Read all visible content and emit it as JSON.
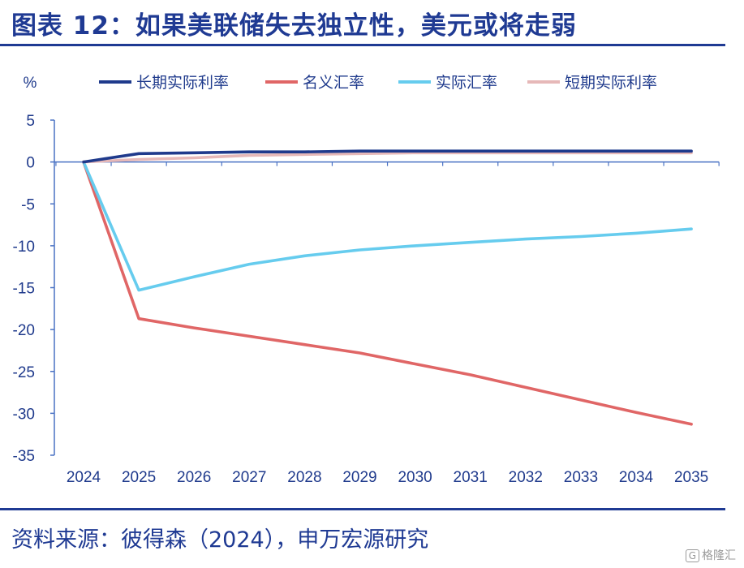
{
  "title": "图表 12：如果美联储失去独立性，美元或将走弱",
  "source": "资料来源：彼得森（2024），申万宏源研究",
  "watermark": "格隆汇",
  "chart_data": {
    "type": "line",
    "ylabel": "%",
    "ylim": [
      -35,
      5
    ],
    "yticks": [
      5,
      0,
      -5,
      -10,
      -15,
      -20,
      -25,
      -30,
      -35
    ],
    "categories": [
      "2024",
      "2025",
      "2026",
      "2027",
      "2028",
      "2029",
      "2030",
      "2031",
      "2032",
      "2033",
      "2034",
      "2035"
    ],
    "legend_position": "top",
    "grid": false,
    "series": [
      {
        "name": "长期实际利率",
        "color": "#1f3a8c",
        "values": [
          0,
          1.0,
          1.1,
          1.2,
          1.2,
          1.3,
          1.3,
          1.3,
          1.3,
          1.3,
          1.3,
          1.3
        ]
      },
      {
        "name": "名义汇率",
        "color": "#e06666",
        "values": [
          0,
          -18.7,
          -19.8,
          -20.8,
          -21.8,
          -22.8,
          -24.1,
          -25.4,
          -26.9,
          -28.4,
          -29.9,
          -31.3
        ]
      },
      {
        "name": "实际汇率",
        "color": "#66ccee",
        "values": [
          0,
          -15.3,
          -13.7,
          -12.2,
          -11.2,
          -10.5,
          -10.0,
          -9.6,
          -9.2,
          -8.9,
          -8.5,
          -8.0
        ]
      },
      {
        "name": "短期实际利率",
        "color": "#e6b8b8",
        "values": [
          0,
          0.3,
          0.5,
          0.8,
          0.9,
          1.0,
          1.1,
          1.1,
          1.1,
          1.1,
          1.1,
          1.1
        ]
      }
    ]
  }
}
